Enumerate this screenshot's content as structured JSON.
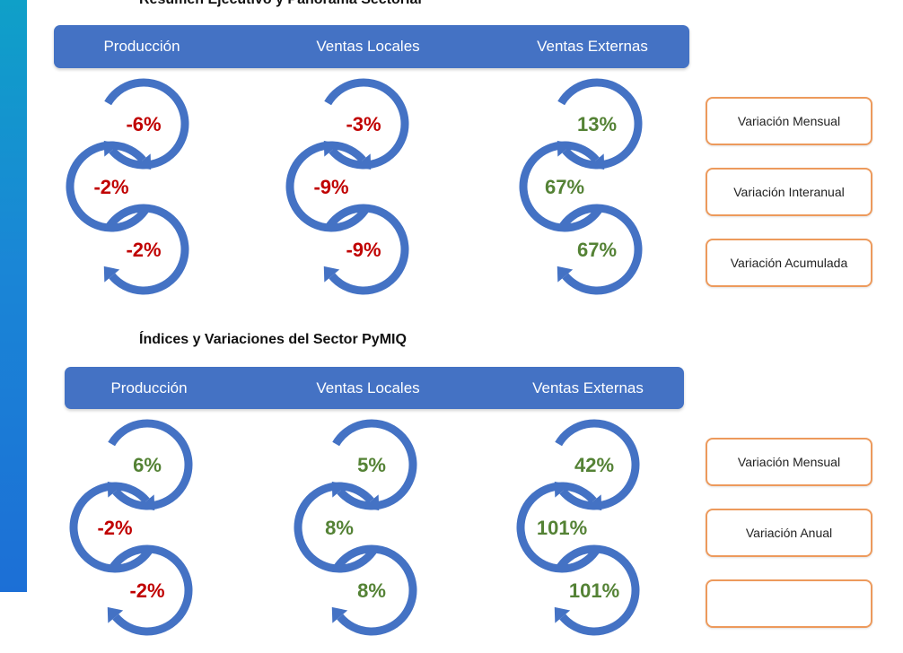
{
  "colors": {
    "accent": "#4472c4",
    "negative": "#c00000",
    "positive": "#548235",
    "legend_border": "#ed9a5c"
  },
  "section1": {
    "title": "Resumen Ejecutivo y Panorama Sectorial",
    "headers": [
      "Producción",
      "Ventas Locales",
      "Ventas Externas"
    ],
    "legend": [
      "Variación Mensual",
      "Variación Interanual",
      "Variación Acumulada"
    ],
    "columns": [
      {
        "name": "Producción",
        "values": [
          "-6%",
          "-2%",
          "-2%"
        ],
        "signs": [
          "neg",
          "neg",
          "neg"
        ]
      },
      {
        "name": "Ventas Locales",
        "values": [
          "-3%",
          "-9%",
          "-9%"
        ],
        "signs": [
          "neg",
          "neg",
          "neg"
        ]
      },
      {
        "name": "Ventas Externas",
        "values": [
          "13%",
          "67%",
          "67%"
        ],
        "signs": [
          "pos",
          "pos",
          "pos"
        ]
      }
    ]
  },
  "section2": {
    "title": "Índices y Variaciones del Sector PyMIQ",
    "headers": [
      "Producción",
      "Ventas Locales",
      "Ventas Externas"
    ],
    "legend": [
      "Variación Mensual",
      "Variación Anual",
      ""
    ],
    "columns": [
      {
        "name": "Producción",
        "values": [
          "6%",
          "-2%",
          "-2%"
        ],
        "signs": [
          "pos",
          "neg",
          "neg"
        ]
      },
      {
        "name": "Ventas Locales",
        "values": [
          "5%",
          "8%",
          "8%"
        ],
        "signs": [
          "pos",
          "pos",
          "pos"
        ]
      },
      {
        "name": "Ventas Externas",
        "values": [
          "42%",
          "101%",
          "101%"
        ],
        "signs": [
          "pos",
          "pos",
          "pos"
        ]
      }
    ]
  }
}
